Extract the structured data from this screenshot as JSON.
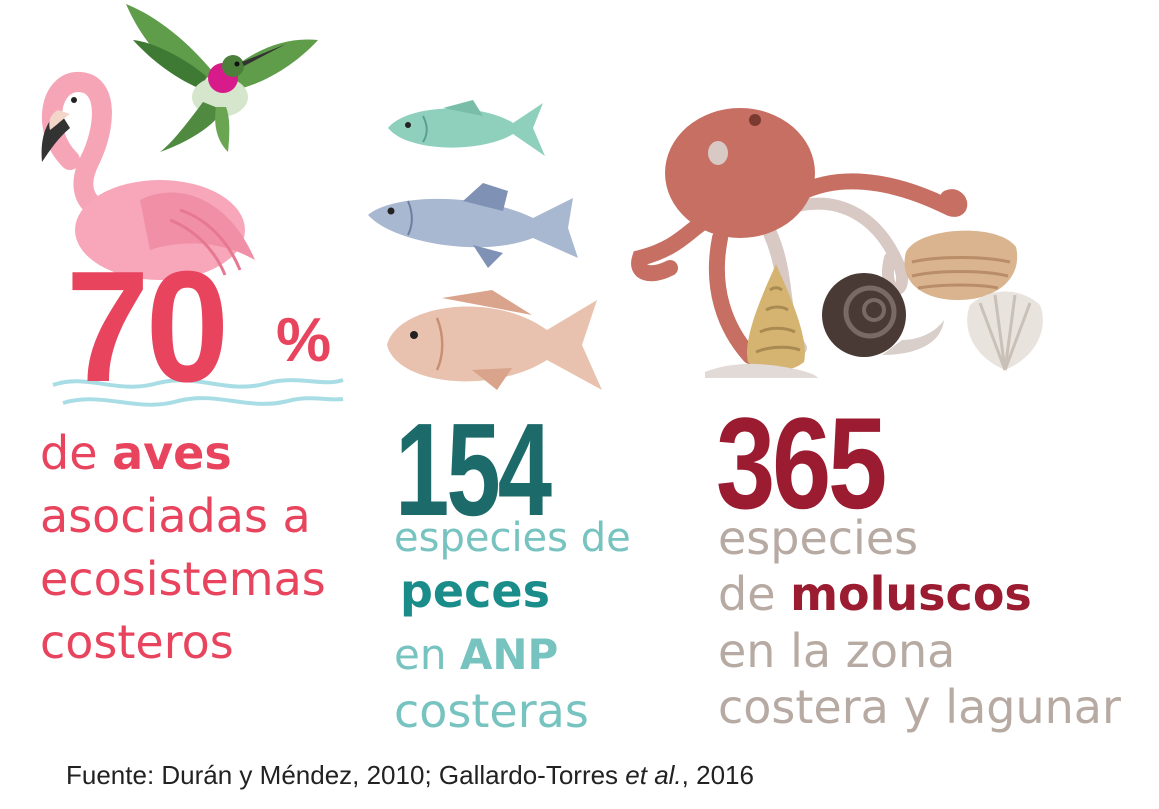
{
  "aves": {
    "percent_number": "70",
    "percent_sign": "%",
    "line1_pre": "de ",
    "line1_bold": "aves",
    "line2": "asociadas a",
    "line3": "ecosistemas",
    "line4": "costeros"
  },
  "peces": {
    "number": "154",
    "line1": "especies de",
    "line2_bold": "peces",
    "line3_pre": "en ",
    "line3_bold": "ANP",
    "line4": "costeras"
  },
  "moluscos": {
    "number": "365",
    "line1": "especies",
    "line2_pre": "de ",
    "line2_bold": "moluscos",
    "line3": "en la zona",
    "line4": "costera y lagunar"
  },
  "source": {
    "pre": "Fuente: Durán y Méndez, 2010; Gallardo-Torres ",
    "italic": "et al.",
    "post": ", 2016"
  },
  "icons": [
    "hummingbird-icon",
    "flamingo-icon",
    "fish-icon",
    "octopus-icon",
    "snail-icon",
    "clam-icon",
    "scallop-icon"
  ],
  "colors": {
    "aves": "#e8445e",
    "peces_dark": "#1d6a6a",
    "peces_light": "#77c3c0",
    "peces_bold": "#1a8c8a",
    "moluscos_dark": "#9b1b30",
    "moluscos_light": "#b7aaa2",
    "source": "#222222"
  }
}
